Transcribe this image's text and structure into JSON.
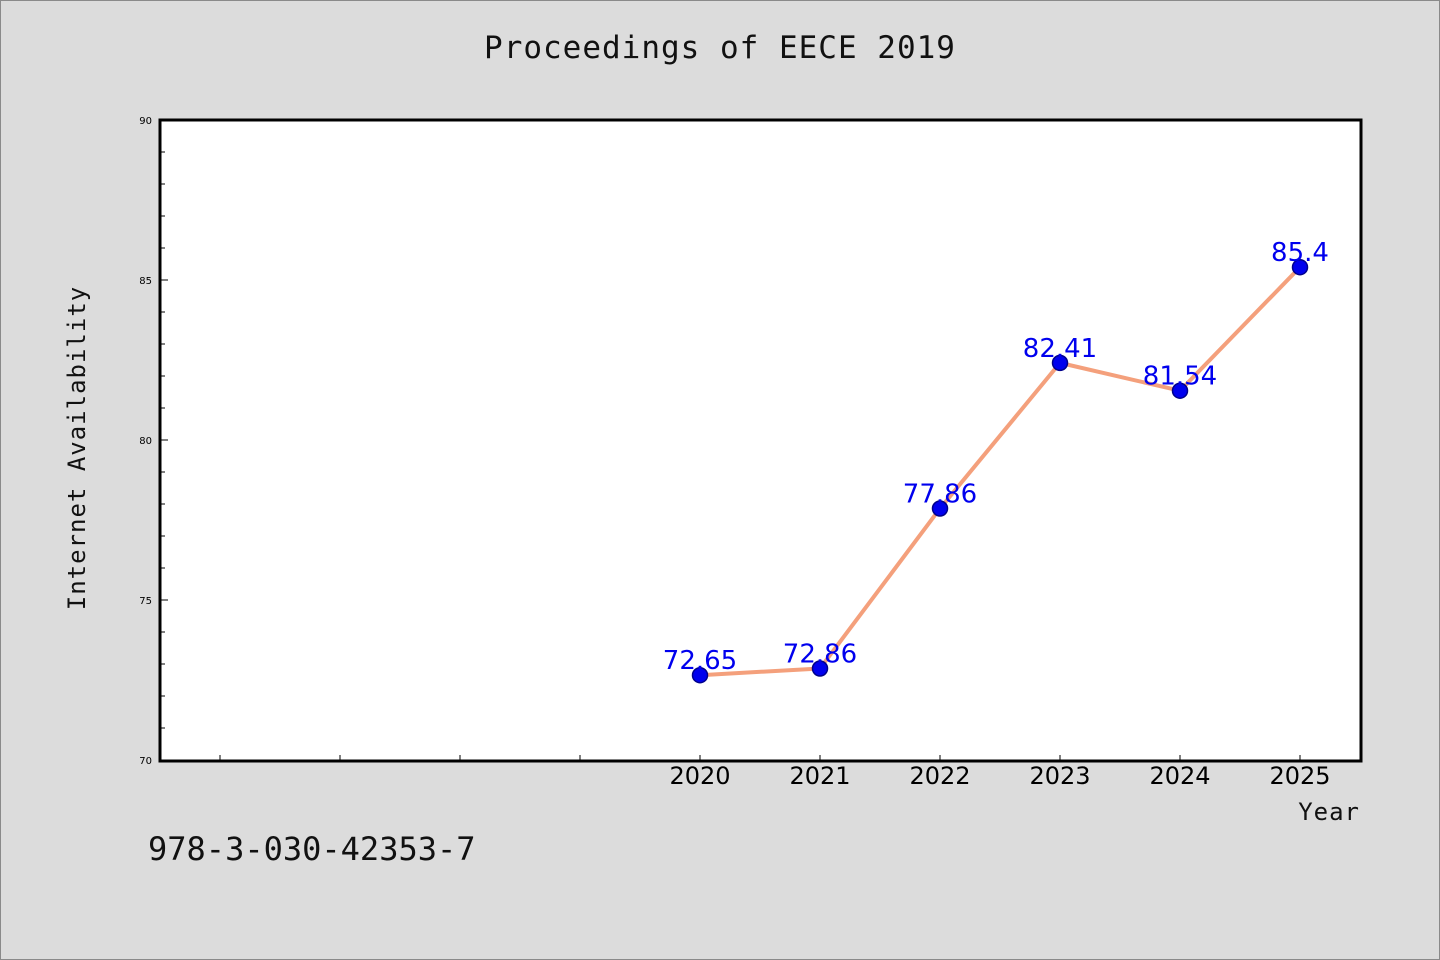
{
  "header": {
    "title": "Proceedings of EECE 2019"
  },
  "footer": {
    "isbn": "978-3-030-42353-7"
  },
  "colors": {
    "background": "#dcdcdc",
    "plot_background": "#ffffff",
    "line": "#f4a07c",
    "marker": "#0000ee",
    "data_label": "#0000ee"
  },
  "chart_data": {
    "type": "line",
    "title": "",
    "xlabel": "Year",
    "ylabel": "Internet Availability",
    "ylim": [
      70,
      90
    ],
    "xlim": [
      2015.5,
      2025.5
    ],
    "yticks": [
      70,
      75,
      80,
      85,
      90
    ],
    "ytick_labels": [
      "70",
      "75",
      "80",
      "85",
      "90"
    ],
    "xticks": [
      2020,
      2021,
      2022,
      2023,
      2024,
      2025
    ],
    "xtick_labels": [
      "2020",
      "2021",
      "2022",
      "2023",
      "2024",
      "2025"
    ],
    "x": [
      2020,
      2021,
      2022,
      2023,
      2024,
      2025
    ],
    "series": [
      {
        "values": [
          72.65,
          72.86,
          77.86,
          82.41,
          81.54,
          85.4
        ],
        "labels": [
          "72.65",
          "72.86",
          "77.86",
          "82.41",
          "81.54",
          "85.4"
        ]
      }
    ],
    "grid": false,
    "legend": "none"
  }
}
